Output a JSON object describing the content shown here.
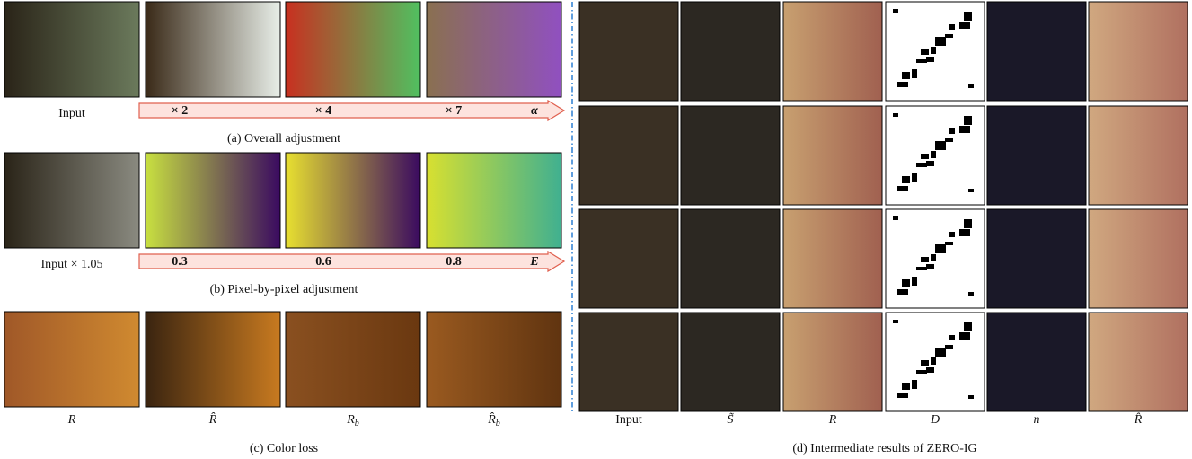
{
  "panel_a": {
    "input_label": "Input",
    "arrow_labels": [
      "× 2",
      "× 4",
      "× 7",
      "α"
    ],
    "caption": "(a)  Overall adjustment"
  },
  "panel_b": {
    "input_label": "Input × 1.05",
    "arrow_labels": [
      "0.3",
      "0.6",
      "0.8",
      "E"
    ],
    "caption": "(b)  Pixel-by-pixel adjustment"
  },
  "panel_c": {
    "labels": [
      {
        "base": "R",
        "sub": ""
      },
      {
        "base": "R̂",
        "sub": ""
      },
      {
        "base": "R",
        "sub": "b"
      },
      {
        "base": "R̂",
        "sub": "b"
      }
    ],
    "caption": "(c)  Color loss"
  },
  "panel_d": {
    "column_labels": [
      "Input",
      "S̃",
      "R",
      "D",
      "n",
      "R̂"
    ],
    "caption": "(d)  Intermediate results of ZERO-IG"
  }
}
